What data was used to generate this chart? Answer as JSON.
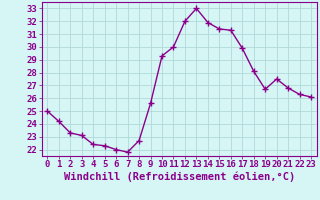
{
  "x": [
    0,
    1,
    2,
    3,
    4,
    5,
    6,
    7,
    8,
    9,
    10,
    11,
    12,
    13,
    14,
    15,
    16,
    17,
    18,
    19,
    20,
    21,
    22,
    23
  ],
  "y": [
    25.0,
    24.2,
    23.3,
    23.1,
    22.4,
    22.3,
    22.0,
    21.8,
    22.7,
    25.6,
    29.3,
    30.0,
    32.0,
    33.0,
    31.9,
    31.4,
    31.3,
    29.9,
    28.1,
    26.7,
    27.5,
    26.8,
    26.3,
    26.1
  ],
  "line_color": "#8b008b",
  "marker": "+",
  "marker_size": 4,
  "bg_color": "#d6f5f5",
  "grid_color": "#b0d8d8",
  "xlabel": "Windchill (Refroidissement éolien,°C)",
  "xlabel_fontsize": 7.5,
  "xlim": [
    -0.5,
    23.5
  ],
  "ylim": [
    21.5,
    33.5
  ],
  "yticks": [
    22,
    23,
    24,
    25,
    26,
    27,
    28,
    29,
    30,
    31,
    32,
    33
  ],
  "xticks": [
    0,
    1,
    2,
    3,
    4,
    5,
    6,
    7,
    8,
    9,
    10,
    11,
    12,
    13,
    14,
    15,
    16,
    17,
    18,
    19,
    20,
    21,
    22,
    23
  ],
  "tick_fontsize": 6.5,
  "text_color": "#8b008b",
  "spine_color": "#8b008b",
  "linewidth": 1.0
}
